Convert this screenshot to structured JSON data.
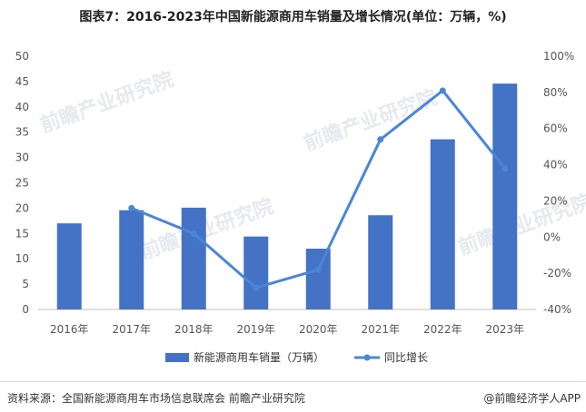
{
  "title": "图表7：2016-2023年中国新能源商用车销量及增长情况(单位：万辆，%)",
  "source": "资料来源：全国新能源商用车市场信息联席会 前瞻产业研究院",
  "brand": "@前瞻经济学人APP",
  "watermark": "前瞻产业研究院",
  "colors": {
    "bar": "#4472c4",
    "line": "#4a86d6",
    "axis_text": "#555555",
    "grid": "#e6e6e6"
  },
  "chart_data": {
    "type": "bar",
    "categories": [
      "2016年",
      "2017年",
      "2018年",
      "2019年",
      "2020年",
      "2021年",
      "2022年",
      "2023年"
    ],
    "series": [
      {
        "name": "新能源商用车销量（万辆）",
        "type": "bar",
        "axis": "left",
        "values": [
          17.0,
          19.6,
          20.1,
          14.4,
          12.0,
          18.6,
          33.6,
          44.6
        ]
      },
      {
        "name": "同比增长",
        "type": "line",
        "axis": "right",
        "values": [
          null,
          16,
          2,
          -28,
          -18,
          54,
          81,
          38
        ]
      }
    ],
    "ylim_left": [
      0,
      50
    ],
    "yticks_left": [
      "0",
      "5",
      "10",
      "15",
      "20",
      "25",
      "30",
      "35",
      "40",
      "45",
      "50"
    ],
    "ylim_right": [
      -40,
      100
    ],
    "yticks_right": [
      "-40%",
      "-20%",
      "0%",
      "20%",
      "40%",
      "60%",
      "80%",
      "100%"
    ],
    "grid": false,
    "legend": "bottom"
  }
}
